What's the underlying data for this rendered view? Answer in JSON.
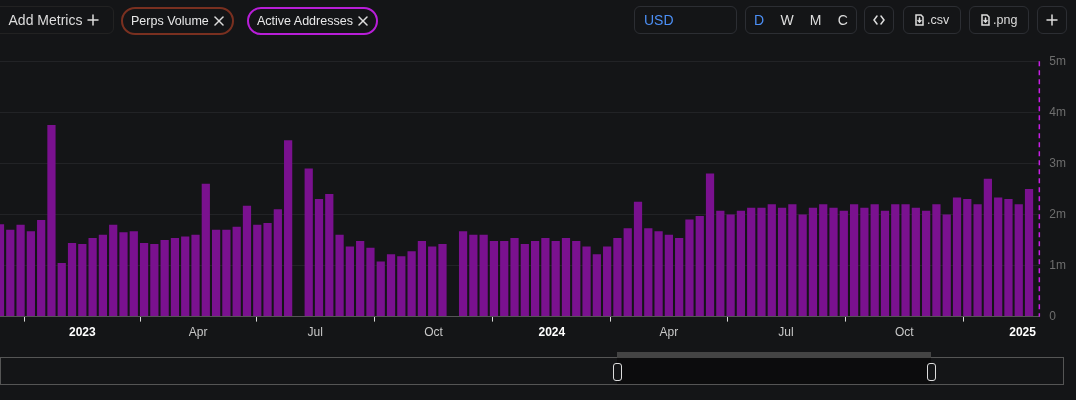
{
  "chart_data": {
    "type": "bar",
    "x": [
      "2022-10-29",
      "2022-11-06",
      "2022-11-14",
      "2022-11-22",
      "2022-11-30",
      "2022-12-08",
      "2022-12-16",
      "2022-12-24",
      "2023-01-01",
      "2023-01-09",
      "2023-01-17",
      "2023-01-25",
      "2023-02-02",
      "2023-02-10",
      "2023-02-18",
      "2023-02-26",
      "2023-03-06",
      "2023-03-14",
      "2023-03-22",
      "2023-03-30",
      "2023-04-07",
      "2023-04-15",
      "2023-04-23",
      "2023-05-01",
      "2023-05-09",
      "2023-05-17",
      "2023-05-25",
      "2023-06-02",
      "2023-06-10",
      "2023-06-18",
      "2023-06-26",
      "2023-07-04",
      "2023-07-12",
      "2023-07-20",
      "2023-07-28",
      "2023-08-05",
      "2023-08-13",
      "2023-08-21",
      "2023-08-29",
      "2023-09-06",
      "2023-09-14",
      "2023-09-22",
      "2023-09-30",
      "2023-10-08",
      "2023-10-16",
      "2023-10-24",
      "2023-11-01",
      "2023-11-09",
      "2023-11-17",
      "2023-11-25",
      "2023-12-03",
      "2023-12-11",
      "2023-12-19",
      "2023-12-27",
      "2024-01-04",
      "2024-01-12",
      "2024-01-20",
      "2024-01-28",
      "2024-02-05",
      "2024-02-13",
      "2024-02-21",
      "2024-02-29",
      "2024-03-08",
      "2024-03-16",
      "2024-03-24",
      "2024-04-01",
      "2024-04-09",
      "2024-04-17",
      "2024-04-25",
      "2024-05-03",
      "2024-05-11",
      "2024-05-19",
      "2024-05-27",
      "2024-06-04",
      "2024-06-12",
      "2024-06-20",
      "2024-06-28",
      "2024-07-06",
      "2024-07-14",
      "2024-07-22",
      "2024-07-30",
      "2024-08-07",
      "2024-08-15",
      "2024-08-23",
      "2024-08-31",
      "2024-09-08",
      "2024-09-16",
      "2024-09-24",
      "2024-10-02",
      "2024-10-10",
      "2024-10-18",
      "2024-10-26",
      "2024-11-03",
      "2024-11-11",
      "2024-11-19",
      "2024-11-27",
      "2024-12-05",
      "2024-12-13",
      "2024-12-21",
      "2024-12-29",
      "2025-01-06"
    ],
    "series": [
      {
        "name": "Active Addresses",
        "color": "#7a118f",
        "values": [
          1810000,
          1700000,
          1800000,
          1670000,
          1890000,
          3750000,
          1050000,
          1440000,
          1420000,
          1540000,
          1600000,
          1800000,
          1650000,
          1670000,
          1440000,
          1420000,
          1500000,
          1540000,
          1570000,
          1600000,
          2600000,
          1700000,
          1700000,
          1760000,
          2170000,
          1800000,
          1830000,
          2100000,
          3450000,
          null,
          2900000,
          2300000,
          2400000,
          1600000,
          1370000,
          1480000,
          1350000,
          1080000,
          1220000,
          1180000,
          1280000,
          1480000,
          1370000,
          1420000,
          null,
          1670000,
          1600000,
          1600000,
          1480000,
          1480000,
          1540000,
          1420000,
          1480000,
          1540000,
          1480000,
          1540000,
          1480000,
          1370000,
          1220000,
          1370000,
          1540000,
          1730000,
          2250000,
          1730000,
          1670000,
          1600000,
          1540000,
          1900000,
          1970000,
          2800000,
          2070000,
          2000000,
          2070000,
          2130000,
          2130000,
          2200000,
          2130000,
          2200000,
          2000000,
          2130000,
          2200000,
          2130000,
          2070000,
          2200000,
          2130000,
          2200000,
          2070000,
          2200000,
          2200000,
          2130000,
          2070000,
          2200000,
          2000000,
          2330000,
          2300000,
          2200000,
          2700000,
          2330000,
          2300000,
          2200000,
          2500000
        ]
      }
    ],
    "xlim": [
      "2022-10-29",
      "2025-01-14"
    ],
    "xticks": [
      {
        "value": "2023-01-01",
        "label": "2023"
      },
      {
        "value": "2023-04-01",
        "label": "Apr"
      },
      {
        "value": "2023-07-01",
        "label": "Jul"
      },
      {
        "value": "2023-10-01",
        "label": "Oct"
      },
      {
        "value": "2024-01-01",
        "label": "2024"
      },
      {
        "value": "2024-04-01",
        "label": "Apr"
      },
      {
        "value": "2024-07-01",
        "label": "Jul"
      },
      {
        "value": "2024-10-01",
        "label": "Oct"
      },
      {
        "value": "2025-01-01",
        "label": "2025"
      }
    ],
    "ylim": [
      0,
      5000000
    ],
    "yticks": [
      {
        "value": 0,
        "label": "0"
      },
      {
        "value": 1000000,
        "label": "1m"
      },
      {
        "value": 2000000,
        "label": "2m"
      },
      {
        "value": 3000000,
        "label": "3m"
      },
      {
        "value": 4000000,
        "label": "4m"
      },
      {
        "value": 5000000,
        "label": "5m"
      }
    ],
    "grid": "y",
    "legend": "top left",
    "annotations": [
      "Add Metrics",
      "Perps Volume",
      "USD",
      "D",
      "W",
      "M",
      "C",
      ".csv",
      ".png"
    ]
  }
}
